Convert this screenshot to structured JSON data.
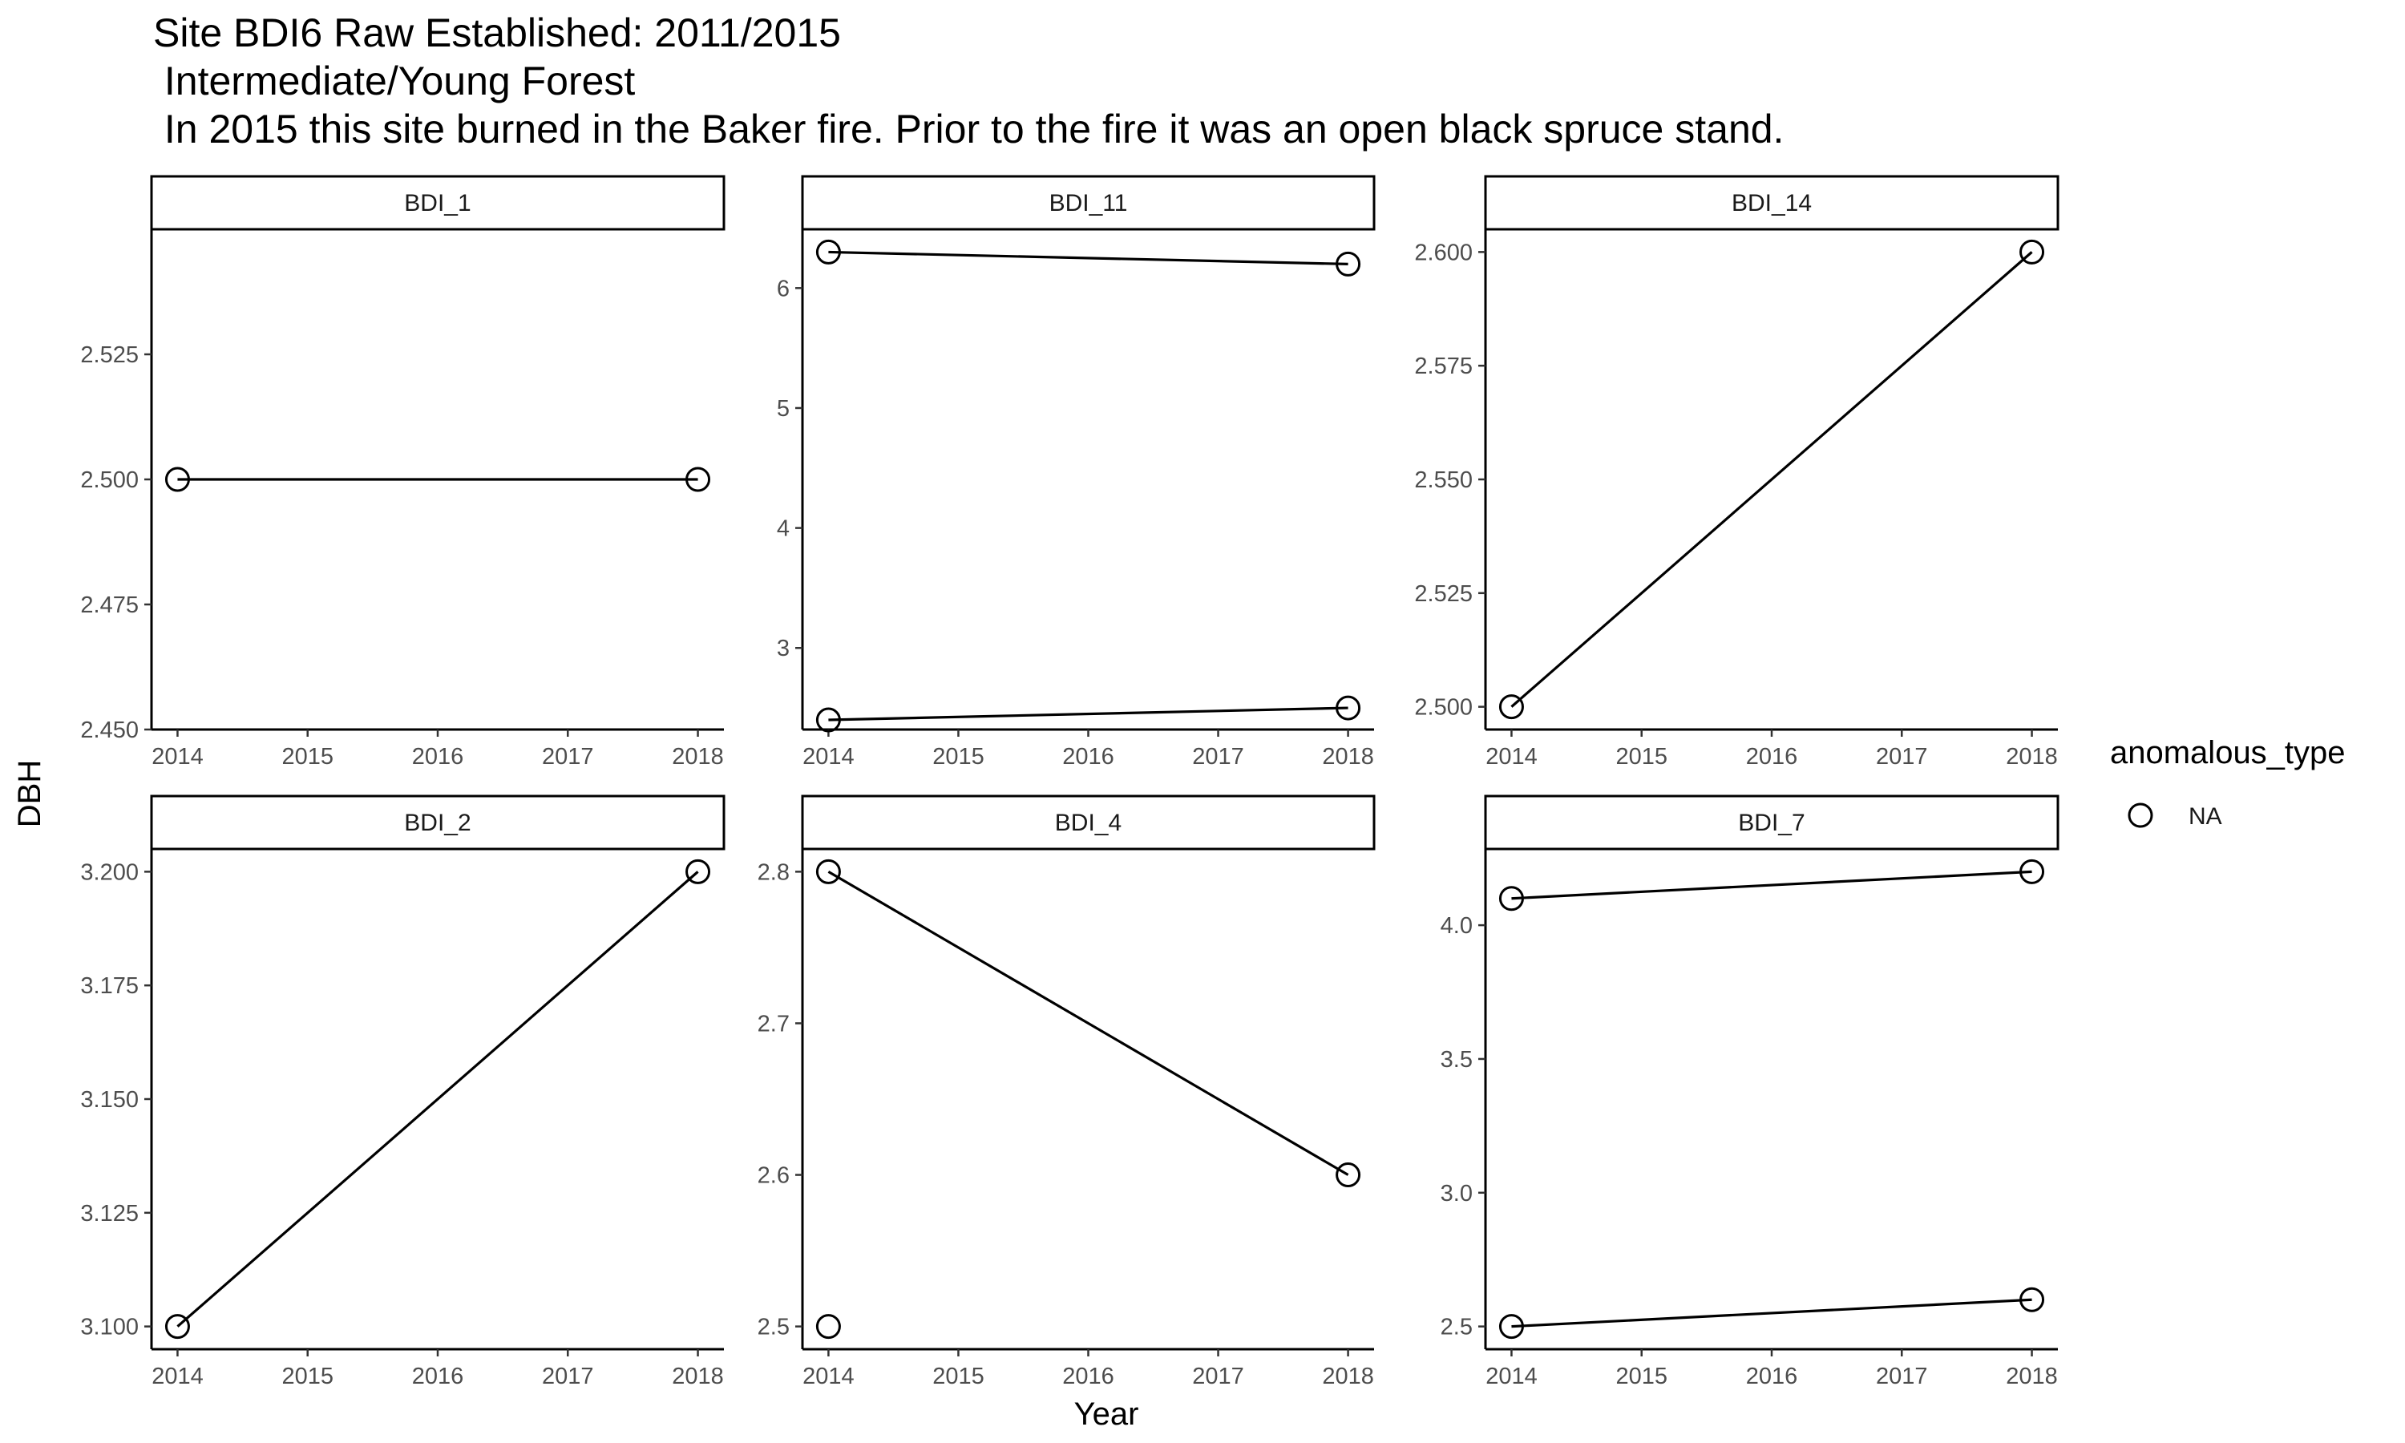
{
  "chart_data": {
    "type": "line",
    "title_lines": [
      "Site BDI6 Raw Established: 2011/2015",
      " Intermediate/Young Forest",
      " In 2015 this site burned in the Baker fire. Prior to the fire it was an open black spruce stand."
    ],
    "xlabel": "Year",
    "ylabel": "DBH",
    "x_ticks": [
      2014,
      2015,
      2016,
      2017,
      2018
    ],
    "x_tick_labels": [
      "2014",
      "2015",
      "2016",
      "2017",
      "2018"
    ],
    "xlim": [
      2013.8,
      2018.2
    ],
    "legend": {
      "title": "anomalous_type",
      "entries": [
        {
          "label": "NA",
          "shape": "open-circle"
        }
      ],
      "position": "right"
    },
    "grid": false,
    "panels": [
      {
        "label": "BDI_1",
        "ylim": [
          2.45,
          2.55
        ],
        "y_ticks": [
          2.45,
          2.475,
          2.5,
          2.525
        ],
        "y_tick_labels": [
          "2.450",
          "2.475",
          "2.500",
          "2.525"
        ],
        "lines": [
          [
            [
              2014,
              2.5
            ],
            [
              2018,
              2.5
            ]
          ]
        ],
        "points": [
          [
            2014,
            2.5
          ],
          [
            2018,
            2.5
          ]
        ]
      },
      {
        "label": "BDI_11",
        "ylim": [
          2.32,
          6.49
        ],
        "y_ticks": [
          3,
          4,
          5,
          6
        ],
        "y_tick_labels": [
          "3",
          "4",
          "5",
          "6"
        ],
        "lines": [
          [
            [
              2014,
              6.3
            ],
            [
              2018,
              6.2
            ]
          ],
          [
            [
              2014,
              2.4
            ],
            [
              2018,
              2.5
            ]
          ]
        ],
        "points": [
          [
            2014,
            6.3
          ],
          [
            2018,
            6.2
          ],
          [
            2014,
            2.4
          ],
          [
            2018,
            2.5
          ]
        ]
      },
      {
        "label": "BDI_14",
        "ylim": [
          2.495,
          2.605
        ],
        "y_ticks": [
          2.5,
          2.525,
          2.55,
          2.575,
          2.6
        ],
        "y_tick_labels": [
          "2.500",
          "2.525",
          "2.550",
          "2.575",
          "2.600"
        ],
        "lines": [
          [
            [
              2014,
              2.5
            ],
            [
              2018,
              2.6
            ]
          ]
        ],
        "points": [
          [
            2014,
            2.5
          ],
          [
            2018,
            2.6
          ]
        ]
      },
      {
        "label": "BDI_2",
        "ylim": [
          3.095,
          3.205
        ],
        "y_ticks": [
          3.1,
          3.125,
          3.15,
          3.175,
          3.2
        ],
        "y_tick_labels": [
          "3.100",
          "3.125",
          "3.150",
          "3.175",
          "3.200"
        ],
        "lines": [
          [
            [
              2014,
              3.1
            ],
            [
              2018,
              3.2
            ]
          ]
        ],
        "points": [
          [
            2014,
            3.1
          ],
          [
            2018,
            3.2
          ]
        ]
      },
      {
        "label": "BDI_4",
        "ylim": [
          2.485,
          2.815
        ],
        "y_ticks": [
          2.5,
          2.6,
          2.7,
          2.8
        ],
        "y_tick_labels": [
          "2.5",
          "2.6",
          "2.7",
          "2.8"
        ],
        "lines": [
          [
            [
              2014,
              2.8
            ],
            [
              2018,
              2.6
            ]
          ]
        ],
        "points": [
          [
            2014,
            2.8
          ],
          [
            2018,
            2.6
          ],
          [
            2014,
            2.5
          ]
        ]
      },
      {
        "label": "BDI_7",
        "ylim": [
          2.415,
          4.285
        ],
        "y_ticks": [
          2.5,
          3.0,
          3.5,
          4.0
        ],
        "y_tick_labels": [
          "2.5",
          "3.0",
          "3.5",
          "4.0"
        ],
        "lines": [
          [
            [
              2014,
              4.1
            ],
            [
              2018,
              4.2
            ]
          ],
          [
            [
              2014,
              2.5
            ],
            [
              2018,
              2.6
            ]
          ]
        ],
        "points": [
          [
            2014,
            4.1
          ],
          [
            2018,
            4.2
          ],
          [
            2014,
            2.5
          ],
          [
            2018,
            2.6
          ]
        ]
      }
    ]
  }
}
